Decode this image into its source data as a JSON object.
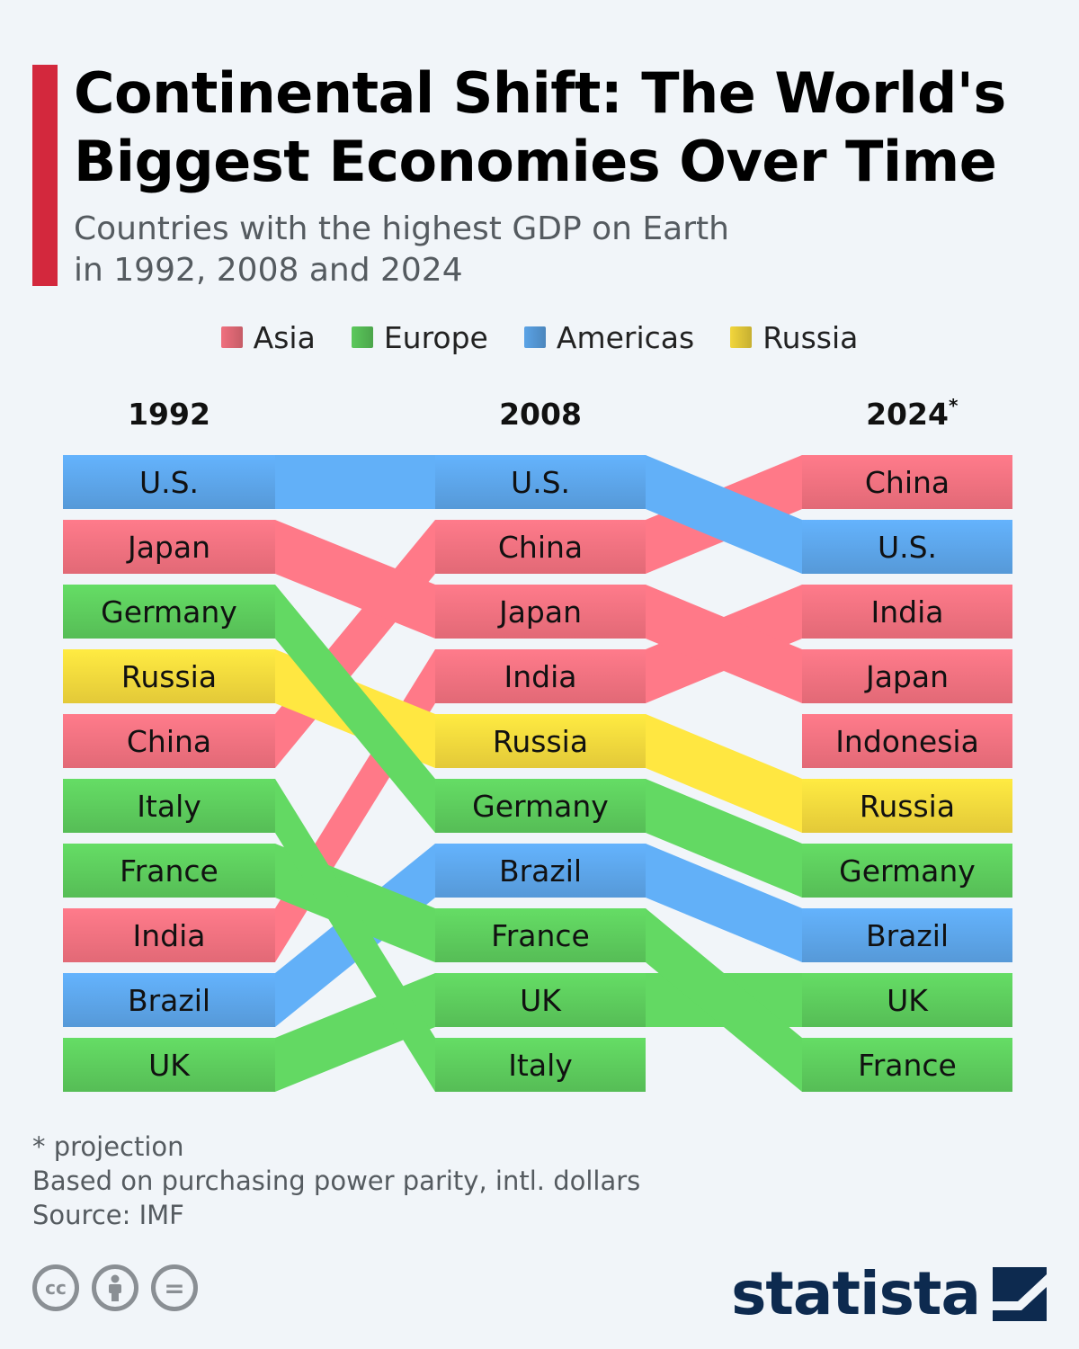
{
  "title": "Continental Shift: The World's Biggest Economies Over Time",
  "subtitle_line1": "Countries with the highest GDP on Earth",
  "subtitle_line2": "in 1992, 2008 and 2024",
  "legend": [
    {
      "name": "Asia",
      "color": "#f0707e"
    },
    {
      "name": "Europe",
      "color": "#5cc95c"
    },
    {
      "name": "Americas",
      "color": "#5ba3e6"
    },
    {
      "name": "Russia",
      "color": "#f2d63c"
    }
  ],
  "colors": {
    "Asia": "#f0707e",
    "Europe": "#5cc95c",
    "Americas": "#5ba3e6",
    "Russia": "#f2d63c",
    "asia_light": "#f9a0a8",
    "europe_light": "#7ee07a",
    "americas_light": "#78baf0",
    "asia_dark": "#e9596c",
    "europe_dark": "#4cbf52",
    "americas_dark": "#4e96e0"
  },
  "chart_data": {
    "type": "table",
    "description_rank": "bump chart of GDP rank",
    "years": [
      "1992",
      "2008",
      "2024"
    ],
    "year_footnote_marks": [
      "",
      "",
      "*"
    ],
    "rankings": {
      "1992": [
        "U.S.",
        "Japan",
        "Germany",
        "Russia",
        "China",
        "Italy",
        "France",
        "India",
        "Brazil",
        "UK"
      ],
      "2008": [
        "U.S.",
        "China",
        "Japan",
        "India",
        "Russia",
        "Germany",
        "Brazil",
        "France",
        "UK",
        "Italy"
      ],
      "2024": [
        "China",
        "U.S.",
        "India",
        "Japan",
        "Indonesia",
        "Russia",
        "Germany",
        "Brazil",
        "UK",
        "France"
      ]
    },
    "regions": {
      "U.S.": "Americas",
      "Brazil": "Americas",
      "Japan": "Asia",
      "China": "Asia",
      "India": "Asia",
      "Indonesia": "Asia",
      "Germany": "Europe",
      "Italy": "Europe",
      "France": "Europe",
      "UK": "Europe",
      "Russia": "Russia"
    }
  },
  "notes": {
    "projection": "* projection",
    "basis": "Based on purchasing power parity, intl. dollars",
    "source": "Source: IMF"
  },
  "license_icons": [
    "cc-icon",
    "attribution-icon",
    "no-derivatives-icon"
  ],
  "cc_labels": {
    "cc": "cc",
    "eq": "="
  },
  "brand": "statista"
}
